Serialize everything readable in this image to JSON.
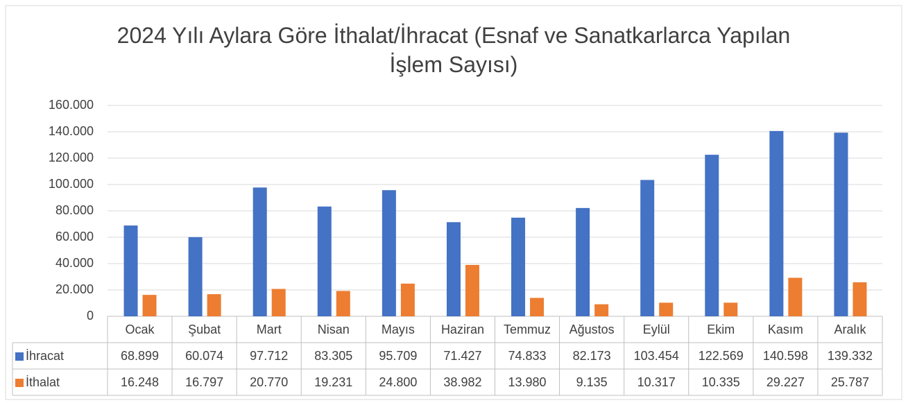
{
  "chart_data": {
    "type": "bar",
    "title": "2024 Yılı Aylara Göre İthalat/İhracat (Esnaf ve Sanatkarlarca Yapılan İşlem Sayısı)",
    "categories": [
      "Ocak",
      "Şubat",
      "Mart",
      "Nisan",
      "Mayıs",
      "Haziran",
      "Temmuz",
      "Ağustos",
      "Eylül",
      "Ekim",
      "Kasım",
      "Aralık"
    ],
    "series": [
      {
        "name": "İhracat",
        "color": "#4472c4",
        "values": [
          68899,
          60074,
          97712,
          83305,
          95709,
          71427,
          74833,
          82173,
          103454,
          122569,
          140598,
          139332
        ],
        "value_labels": [
          "68.899",
          "60.074",
          "97.712",
          "83.305",
          "95.709",
          "71.427",
          "74.833",
          "82.173",
          "103.454",
          "122.569",
          "140.598",
          "139.332"
        ]
      },
      {
        "name": "İthalat",
        "color": "#ed7d31",
        "values": [
          16248,
          16797,
          20770,
          19231,
          24800,
          38982,
          13980,
          9135,
          10317,
          10335,
          29227,
          25787
        ],
        "value_labels": [
          "16.248",
          "16.797",
          "20.770",
          "19.231",
          "24.800",
          "38.982",
          "13.980",
          "9.135",
          "10.317",
          "10.335",
          "29.227",
          "25.787"
        ]
      }
    ],
    "ylim": [
      0,
      160000
    ],
    "yticks": [
      0,
      {
        "value": 20000,
        "label": "20.000"
      },
      {
        "value": 40000,
        "label": "40.000"
      },
      {
        "value": 60000,
        "label": "60.000"
      },
      {
        "value": 80000,
        "label": "80.000"
      },
      {
        "value": 100000,
        "label": "100.000"
      },
      {
        "value": 120000,
        "label": "120.000"
      },
      {
        "value": 140000,
        "label": "140.000"
      },
      {
        "value": 160000,
        "label": "160.000"
      }
    ],
    "grid": true
  }
}
